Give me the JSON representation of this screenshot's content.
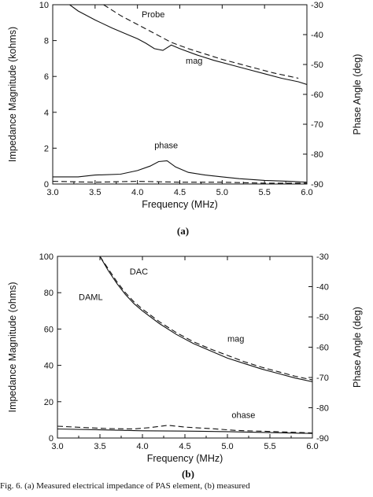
{
  "caption": "Fig. 6. (a) Measured electrical impedance of PAS element, (b) measured",
  "chart_data": [
    {
      "type": "line",
      "panel_label": "(a)",
      "xlabel": "Frequency (MHz)",
      "ylabel": "Impedance Magnitude (kohms)",
      "y2label": "Phase Angle (deg)",
      "xlim": [
        3.0,
        6.0
      ],
      "ylim": [
        0,
        10
      ],
      "y2lim": [
        -90,
        -30
      ],
      "x_ticks": [
        "3.0",
        "3.5",
        "4.0",
        "4.5",
        "5.0",
        "5.5",
        "6.0"
      ],
      "y_ticks": [
        "0",
        "2",
        "4",
        "6",
        "8",
        "10"
      ],
      "y2_ticks": [
        "-30",
        "-40",
        "-50",
        "-60",
        "-70",
        "-80",
        "-90"
      ],
      "annotations": [
        {
          "text": "Probe",
          "x": 4.05,
          "y": 9.3
        },
        {
          "text": "mag",
          "x": 4.57,
          "y": 6.7
        },
        {
          "text": "phase",
          "x": 4.2,
          "y": 2.0
        }
      ],
      "series": [
        {
          "style": "solid",
          "axis": "left",
          "x": [
            3.2,
            3.3,
            3.5,
            3.7,
            3.9,
            4.0,
            4.1,
            4.2,
            4.3,
            4.4,
            4.5,
            4.7,
            4.9,
            5.1,
            5.3,
            5.5,
            5.7,
            5.9,
            6.0
          ],
          "y": [
            10.0,
            9.65,
            9.15,
            8.7,
            8.3,
            8.1,
            7.85,
            7.55,
            7.45,
            7.75,
            7.55,
            7.2,
            6.9,
            6.65,
            6.4,
            6.15,
            5.9,
            5.7,
            5.55
          ]
        },
        {
          "style": "dashed",
          "axis": "left",
          "x": [
            3.6,
            3.8,
            4.0,
            4.2,
            4.4,
            4.6,
            4.8,
            5.0,
            5.2,
            5.4,
            5.6,
            5.8,
            5.9
          ],
          "y": [
            10.0,
            9.4,
            8.9,
            8.4,
            7.9,
            7.55,
            7.25,
            6.95,
            6.7,
            6.45,
            6.2,
            6.0,
            5.9
          ]
        },
        {
          "style": "solid",
          "axis": "left",
          "x": [
            3.0,
            3.3,
            3.5,
            3.8,
            4.0,
            4.15,
            4.25,
            4.35,
            4.45,
            4.6,
            4.8,
            5.0,
            5.2,
            5.5,
            5.8,
            6.0
          ],
          "y": [
            0.4,
            0.4,
            0.5,
            0.55,
            0.75,
            1.0,
            1.25,
            1.3,
            0.95,
            0.65,
            0.5,
            0.4,
            0.3,
            0.2,
            0.15,
            0.1
          ]
        },
        {
          "style": "dashed",
          "axis": "left",
          "x": [
            3.0,
            3.5,
            4.0,
            4.5,
            5.0,
            5.5,
            6.0
          ],
          "y": [
            0.15,
            0.1,
            0.15,
            0.1,
            0.1,
            0.05,
            0.05
          ]
        }
      ]
    },
    {
      "type": "line",
      "panel_label": "(b)",
      "xlabel": "Frequency (MHz)",
      "ylabel": "Impedance Magnitude (ohms)",
      "y2label": "Phase Angle (deg)",
      "xlim": [
        3.0,
        6.0
      ],
      "ylim": [
        0,
        100
      ],
      "y2lim": [
        -90,
        -30
      ],
      "x_ticks": [
        "3.0",
        "3.5",
        "4.0",
        "4.5",
        "5.0",
        "5.5",
        "6.0"
      ],
      "y_ticks": [
        "0",
        "20",
        "40",
        "60",
        "80",
        "100"
      ],
      "y2_ticks": [
        "-30",
        "-40",
        "-50",
        "-60",
        "-70",
        "-80",
        "-90"
      ],
      "annotations": [
        {
          "text": "DAC",
          "x": 3.85,
          "y": 90
        },
        {
          "text": "DAML",
          "x": 3.25,
          "y": 76
        },
        {
          "text": "mag",
          "x": 5.0,
          "y": 53
        },
        {
          "text": "ohase",
          "x": 5.05,
          "y": 11
        }
      ],
      "series": [
        {
          "style": "solid",
          "axis": "left",
          "x": [
            3.5,
            3.6,
            3.7,
            3.8,
            3.9,
            4.0,
            4.2,
            4.4,
            4.6,
            4.8,
            5.0,
            5.2,
            5.4,
            5.6,
            5.8,
            6.0
          ],
          "y": [
            100,
            92,
            85,
            79,
            74,
            70,
            63,
            57,
            52,
            48,
            44,
            41,
            38,
            35.5,
            33,
            31
          ]
        },
        {
          "style": "dashed",
          "axis": "left",
          "x": [
            3.5,
            3.6,
            3.7,
            3.8,
            3.9,
            4.0,
            4.2,
            4.4,
            4.6,
            4.8,
            5.0,
            5.2,
            5.4,
            5.6,
            5.8,
            6.0
          ],
          "y": [
            100,
            93,
            86,
            80,
            75,
            71,
            64,
            58,
            53,
            49,
            45.5,
            42,
            39,
            36.5,
            34,
            32
          ]
        },
        {
          "style": "solid",
          "axis": "left",
          "x": [
            3.0,
            3.5,
            4.0,
            4.5,
            5.0,
            5.5,
            6.0
          ],
          "y": [
            5.0,
            4.5,
            4.0,
            3.8,
            3.5,
            3.0,
            2.5
          ]
        },
        {
          "style": "dashed",
          "axis": "left",
          "x": [
            3.0,
            3.3,
            3.6,
            3.9,
            4.1,
            4.3,
            4.5,
            4.8,
            5.1,
            5.5,
            6.0
          ],
          "y": [
            6.5,
            5.8,
            5.2,
            5.0,
            5.8,
            7.0,
            6.0,
            5.2,
            4.2,
            3.6,
            2.8
          ]
        }
      ]
    }
  ]
}
